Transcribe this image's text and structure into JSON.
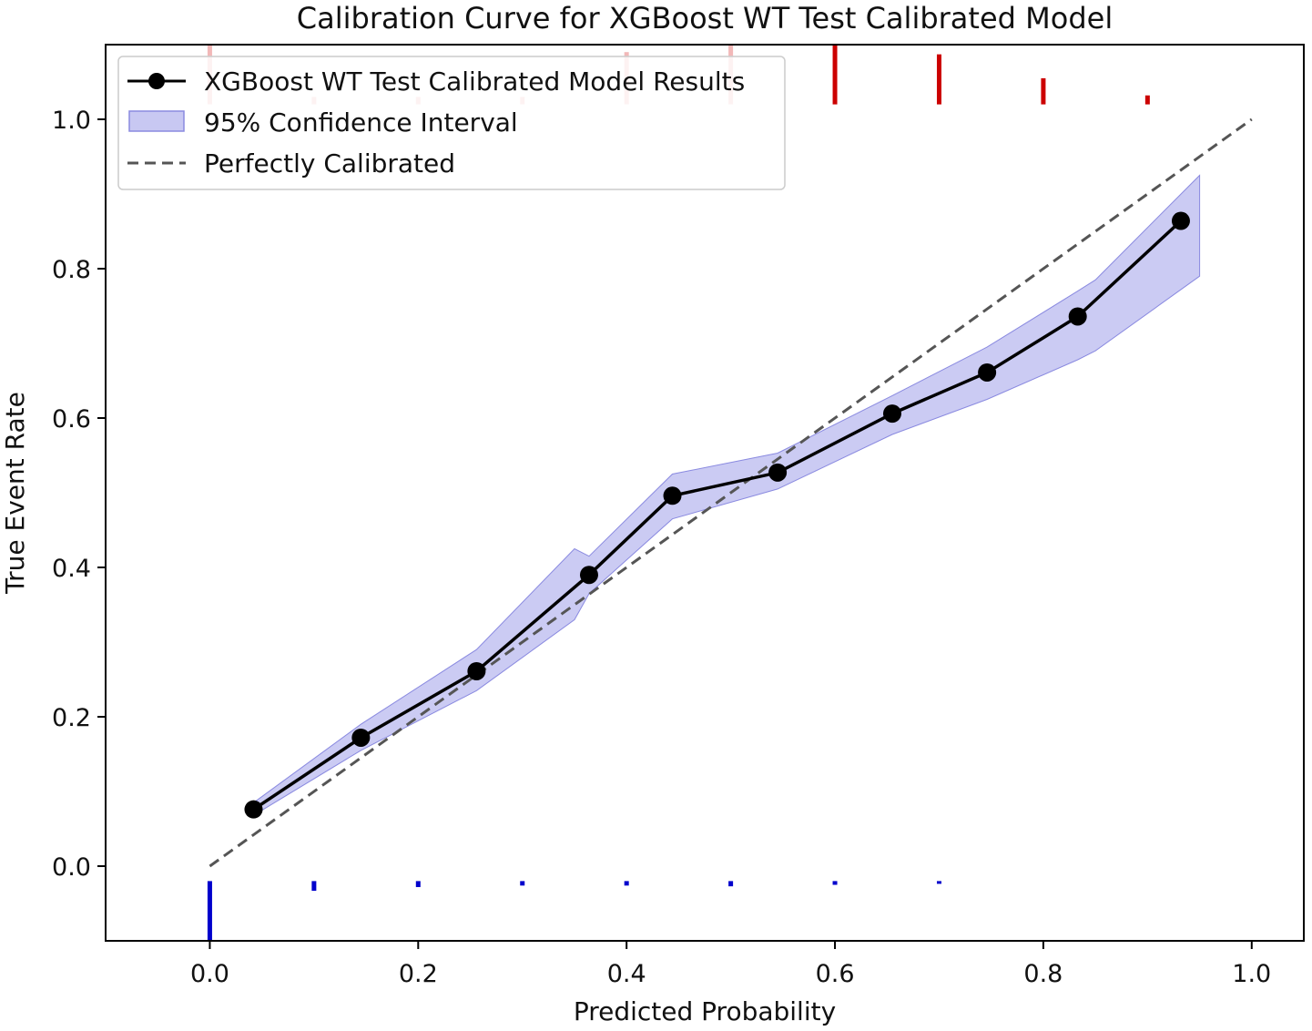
{
  "chart_data": {
    "type": "line",
    "title": "Calibration Curve for XGBoost WT Test Calibrated Model",
    "xlabel": "Predicted Probability",
    "ylabel": "True Event Rate",
    "xlim": [
      -0.1,
      1.05
    ],
    "ylim": [
      -0.1,
      1.1
    ],
    "x_ticks": [
      0.0,
      0.2,
      0.4,
      0.6,
      0.8,
      1.0
    ],
    "x_tick_labels": [
      "0.0",
      "0.2",
      "0.4",
      "0.6",
      "0.8",
      "1.0"
    ],
    "y_ticks": [
      0.0,
      0.2,
      0.4,
      0.6,
      0.8,
      1.0
    ],
    "y_tick_labels": [
      "0.0",
      "0.2",
      "0.4",
      "0.6",
      "0.8",
      "1.0"
    ],
    "grid": false,
    "legend_position": "top-left",
    "series": [
      {
        "name": "XGBoost WT Test Calibrated Model Results",
        "kind": "line-markers",
        "color": "#000000",
        "x": [
          0.042,
          0.145,
          0.256,
          0.364,
          0.444,
          0.545,
          0.655,
          0.746,
          0.833,
          0.932
        ],
        "y": [
          0.076,
          0.172,
          0.261,
          0.39,
          0.496,
          0.527,
          0.606,
          0.661,
          0.736,
          0.864
        ]
      },
      {
        "name": "95% Confidence Interval",
        "kind": "band",
        "color": "#c8c8f2",
        "edge_color": "#8a8ae0",
        "x": [
          0.042,
          0.145,
          0.256,
          0.35,
          0.364,
          0.444,
          0.545,
          0.655,
          0.746,
          0.833,
          0.85,
          0.95
        ],
        "lower": [
          0.068,
          0.155,
          0.235,
          0.33,
          0.365,
          0.465,
          0.505,
          0.578,
          0.625,
          0.678,
          0.69,
          0.79
        ],
        "upper": [
          0.085,
          0.19,
          0.29,
          0.425,
          0.415,
          0.525,
          0.553,
          0.63,
          0.695,
          0.77,
          0.785,
          0.925
        ]
      },
      {
        "name": "Perfectly Calibrated",
        "kind": "dashed-line",
        "color": "#555555",
        "x": [
          0.0,
          1.0
        ],
        "y": [
          0.0,
          1.0
        ]
      }
    ],
    "rug_positive": {
      "color": "#cc0000",
      "faded_color": "#f2b8b8",
      "x": [
        0.0,
        0.1,
        0.2,
        0.3,
        0.4,
        0.5,
        0.6,
        0.7,
        0.8,
        0.9
      ],
      "top": [
        1.1,
        1.03,
        1.03,
        1.03,
        1.09,
        1.1,
        1.1,
        1.087,
        1.055,
        1.032
      ],
      "faded": [
        true,
        true,
        true,
        true,
        true,
        true,
        false,
        false,
        false,
        false
      ]
    },
    "rug_negative": {
      "color": "#0000cc",
      "x": [
        0.0,
        0.1,
        0.2,
        0.3,
        0.4,
        0.5,
        0.6,
        0.7
      ],
      "bottom": [
        -0.1,
        -0.033,
        -0.028,
        -0.026,
        -0.026,
        -0.027,
        -0.025,
        -0.022
      ]
    }
  }
}
